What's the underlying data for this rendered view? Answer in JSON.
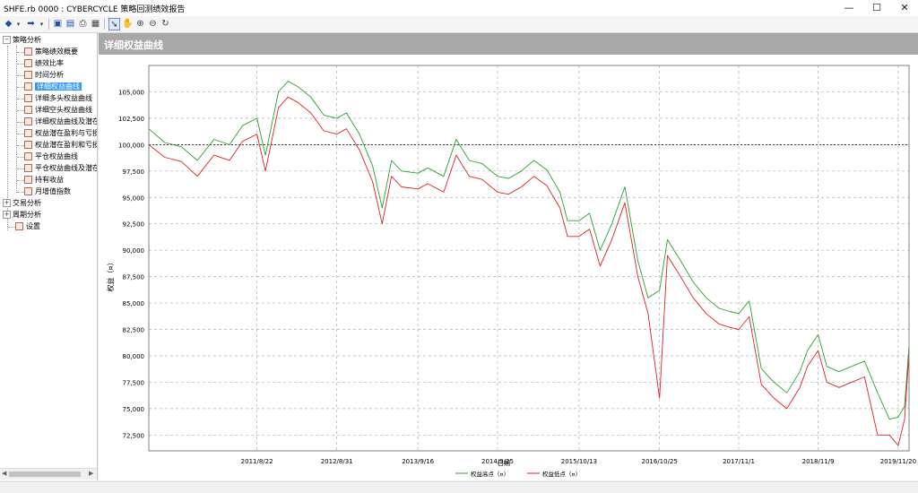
{
  "window": {
    "title": "SHFE.rb 0000 : CYBERCYCLE 策略回测绩效报告",
    "minimize": "—",
    "maximize": "☐",
    "close": "✕"
  },
  "toolbar": {
    "icons": [
      "back-arrow-icon",
      "dropdown-icon",
      "forward-arrow-icon",
      "dropdown-icon",
      "save-icon",
      "export-icon",
      "print-icon",
      "preview-icon",
      "cursor-icon",
      "hand-pan-icon",
      "zoom-in-icon",
      "zoom-out-icon",
      "refresh-icon"
    ]
  },
  "sidebar": {
    "groups": [
      {
        "label": "策略分析",
        "expanded": true,
        "items": [
          {
            "label": "策略绩效概要"
          },
          {
            "label": "绩效比率"
          },
          {
            "label": "时间分析"
          },
          {
            "label": "详细权益曲线",
            "selected": true
          },
          {
            "label": "详细多头权益曲线"
          },
          {
            "label": "详细空头权益曲线"
          },
          {
            "label": "详细权益曲线及潜在"
          },
          {
            "label": "权益潜在盈利与亏损"
          },
          {
            "label": "权益潜在盈利和亏损"
          },
          {
            "label": "平仓权益曲线"
          },
          {
            "label": "平仓权益曲线及潜在"
          },
          {
            "label": "持有收益"
          },
          {
            "label": "月增值指数"
          }
        ]
      },
      {
        "label": "交易分析",
        "expanded": false,
        "items": []
      },
      {
        "label": "周期分析",
        "expanded": false,
        "items": []
      }
    ],
    "settings": "设置"
  },
  "panel": {
    "title": "详细权益曲线"
  },
  "chart_data": {
    "type": "line",
    "title": "",
    "xlabel": "日期",
    "ylabel": "权益（¤）",
    "ylim": [
      71000,
      107500
    ],
    "yticks": [
      72500,
      75000,
      77500,
      80000,
      82500,
      85000,
      87500,
      90000,
      92500,
      95000,
      97500,
      100000,
      102500,
      105000
    ],
    "ytick_labels": [
      "72,500",
      "75,000",
      "77,500",
      "80,000",
      "82,500",
      "85,000",
      "87,500",
      "90,000",
      "92,500",
      "95,000",
      "97,500",
      "100,000",
      "102,500",
      "105,000"
    ],
    "xlim": [
      "2010-04-01",
      "2020-01-10"
    ],
    "xticks": [
      "2011-08-22",
      "2012-08-31",
      "2013-09-16",
      "2014-09-25",
      "2015-10-13",
      "2016-10-25",
      "2017-11-01",
      "2018-11-09",
      "2019-11-20"
    ],
    "xtick_labels": [
      "2011/8/22",
      "2012/8/31",
      "2013/9/16",
      "2014/9/25",
      "2015/10/13",
      "2016/10/25",
      "2017/11/1",
      "2018/11/9",
      "2019/11/20"
    ],
    "reference_line": 100000,
    "grid": true,
    "legend": "bottom-center",
    "colors": {
      "high": "#2ca02c",
      "low": "#e02020",
      "reference": "#000000",
      "grid": "#b0b0b0"
    },
    "x": [
      "2010-04-01",
      "2010-06-15",
      "2010-09-01",
      "2010-11-15",
      "2011-02-01",
      "2011-04-15",
      "2011-06-15",
      "2011-08-22",
      "2011-10-01",
      "2011-12-01",
      "2012-01-15",
      "2012-03-01",
      "2012-05-01",
      "2012-07-01",
      "2012-08-31",
      "2012-10-15",
      "2012-12-15",
      "2013-02-15",
      "2013-04-01",
      "2013-05-15",
      "2013-07-01",
      "2013-09-16",
      "2013-11-01",
      "2014-01-15",
      "2014-03-15",
      "2014-05-15",
      "2014-07-15",
      "2014-09-25",
      "2014-11-15",
      "2015-01-15",
      "2015-03-15",
      "2015-05-15",
      "2015-07-15",
      "2015-08-20",
      "2015-10-13",
      "2015-12-01",
      "2016-01-20",
      "2016-03-15",
      "2016-05-15",
      "2016-07-15",
      "2016-09-01",
      "2016-10-25",
      "2016-12-01",
      "2017-02-01",
      "2017-04-01",
      "2017-06-01",
      "2017-08-01",
      "2017-09-20",
      "2017-11-01",
      "2017-12-20",
      "2018-02-15",
      "2018-04-15",
      "2018-06-15",
      "2018-08-15",
      "2018-09-20",
      "2018-11-09",
      "2018-12-20",
      "2019-02-15",
      "2019-04-15",
      "2019-06-15",
      "2019-08-15",
      "2019-10-10",
      "2019-11-20",
      "2019-12-20",
      "2020-01-10"
    ],
    "series": [
      {
        "name": "权益高点（¤）",
        "values": [
          101500,
          100200,
          99800,
          98500,
          100500,
          100000,
          101800,
          102500,
          99000,
          105000,
          106000,
          105500,
          104500,
          102800,
          102500,
          103000,
          101000,
          98000,
          94000,
          98500,
          97500,
          97300,
          97800,
          97000,
          100500,
          98500,
          98200,
          97000,
          96800,
          97500,
          98500,
          97600,
          95500,
          92800,
          92800,
          93500,
          90000,
          92500,
          96000,
          89000,
          85500,
          86200,
          91000,
          89000,
          87000,
          85500,
          84500,
          84200,
          84000,
          85200,
          78800,
          77500,
          76500,
          78500,
          80500,
          82000,
          79000,
          78500,
          79000,
          79500,
          76500,
          74000,
          74200,
          75200,
          81000
        ]
      },
      {
        "name": "权益低点（¤）",
        "values": [
          100000,
          98800,
          98400,
          97000,
          99000,
          98500,
          100300,
          101000,
          97500,
          103500,
          104500,
          104000,
          103000,
          101300,
          101000,
          101500,
          99500,
          96500,
          92500,
          97000,
          96000,
          95800,
          96300,
          95500,
          99000,
          97000,
          96700,
          95500,
          95300,
          96000,
          97000,
          96100,
          94000,
          91300,
          91300,
          92000,
          88500,
          91000,
          94500,
          87500,
          84000,
          76000,
          89500,
          87500,
          85500,
          84000,
          83000,
          82700,
          82500,
          83700,
          77300,
          76000,
          75000,
          77000,
          79000,
          80500,
          77500,
          77000,
          77500,
          78000,
          72500,
          72500,
          71500,
          74000,
          80200
        ]
      }
    ]
  }
}
